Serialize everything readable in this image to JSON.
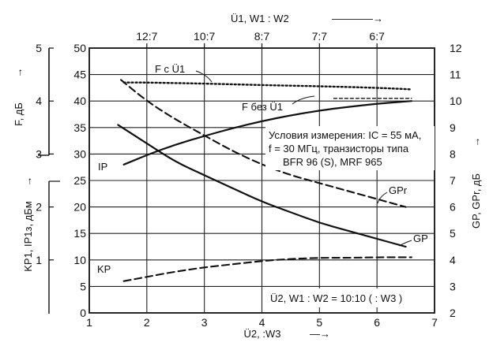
{
  "chart_data": {
    "type": "line",
    "x": {
      "label": "Ü2, :W3",
      "range": [
        1,
        7
      ],
      "ticks": [
        1,
        2,
        3,
        4,
        5,
        6,
        7
      ]
    },
    "top_axis": {
      "label": "Ü1,   W1 : W2",
      "ticks": [
        {
          "label": "12:7",
          "at": 2
        },
        {
          "label": "10:7",
          "at": 3
        },
        {
          "label": "8:7",
          "at": 4
        },
        {
          "label": "7:7",
          "at": 5
        },
        {
          "label": "6:7",
          "at": 6
        }
      ]
    },
    "y_inner": {
      "label": "",
      "range": [
        0,
        50
      ],
      "ticks": [
        0,
        5,
        10,
        15,
        20,
        25,
        30,
        35,
        40,
        45,
        50
      ]
    },
    "y_f": {
      "label": "F, дБ",
      "range": [
        0,
        5
      ],
      "ticks": [
        1,
        2,
        3,
        4,
        5
      ]
    },
    "y_kp": {
      "label": "KP1, IP1з, дБм"
    },
    "y_right": {
      "label": "GP, GPr, дБ",
      "range": [
        2,
        12
      ],
      "ticks": [
        2,
        3,
        4,
        5,
        6,
        7,
        8,
        9,
        10,
        11,
        12
      ]
    },
    "grid": true,
    "series": [
      {
        "name": "F c Ü1",
        "axis": "F",
        "style": "dotted",
        "points": [
          [
            1.6,
            4.35
          ],
          [
            2.0,
            4.35
          ],
          [
            3.0,
            4.33
          ],
          [
            4.0,
            4.3
          ],
          [
            5.0,
            4.28
          ],
          [
            6.0,
            4.25
          ],
          [
            6.6,
            4.22
          ]
        ]
      },
      {
        "name": "F без Ü1",
        "axis": "F",
        "style": "dash-fine",
        "points": [
          [
            5.25,
            4.05
          ],
          [
            6.6,
            4.05
          ]
        ]
      },
      {
        "name": "IP",
        "axis": "inner",
        "style": "solid",
        "points": [
          [
            1.6,
            28
          ],
          [
            2.0,
            29.8
          ],
          [
            2.5,
            31.8
          ],
          [
            3.0,
            33.4
          ],
          [
            3.5,
            34.9
          ],
          [
            4.0,
            36.2
          ],
          [
            4.5,
            37.3
          ],
          [
            5.0,
            38.2
          ],
          [
            5.5,
            38.9
          ],
          [
            6.0,
            39.5
          ],
          [
            6.6,
            40.0
          ]
        ]
      },
      {
        "name": "GPr",
        "axis": "G",
        "style": "dashed",
        "points": [
          [
            1.55,
            10.8
          ],
          [
            2.0,
            10.0
          ],
          [
            2.5,
            9.3
          ],
          [
            3.0,
            8.7
          ],
          [
            3.5,
            8.1
          ],
          [
            4.0,
            7.6
          ],
          [
            4.5,
            7.2
          ],
          [
            5.0,
            6.9
          ],
          [
            5.5,
            6.6
          ],
          [
            6.0,
            6.3
          ],
          [
            6.5,
            6.0
          ]
        ]
      },
      {
        "name": "GP",
        "axis": "G",
        "style": "solid",
        "points": [
          [
            1.5,
            9.1
          ],
          [
            2.0,
            8.4
          ],
          [
            2.5,
            7.7
          ],
          [
            3.0,
            7.2
          ],
          [
            3.5,
            6.7
          ],
          [
            4.0,
            6.2
          ],
          [
            4.5,
            5.8
          ],
          [
            5.0,
            5.4
          ],
          [
            5.5,
            5.1
          ],
          [
            6.0,
            4.8
          ],
          [
            6.5,
            4.5
          ]
        ]
      },
      {
        "name": "KP",
        "axis": "inner",
        "style": "dashed",
        "points": [
          [
            1.6,
            6.0
          ],
          [
            2.0,
            6.8
          ],
          [
            2.5,
            7.8
          ],
          [
            3.0,
            8.6
          ],
          [
            3.5,
            9.2
          ],
          [
            4.0,
            9.8
          ],
          [
            4.5,
            10.2
          ],
          [
            5.0,
            10.4
          ],
          [
            5.5,
            10.4
          ],
          [
            6.0,
            10.5
          ],
          [
            6.6,
            10.5
          ]
        ]
      }
    ],
    "curve_labels": [
      {
        "text": "F c Ü1",
        "series": 0
      },
      {
        "text": "F без Ü1",
        "series": 1
      },
      {
        "text": "IP",
        "series": 2
      },
      {
        "text": "GPr",
        "series": 3
      },
      {
        "text": "GP",
        "series": 4
      },
      {
        "text": "KP",
        "series": 5
      }
    ],
    "annotations": {
      "conditions_lines": [
        "Условия измерения: IC = 55 мА,",
        "f = 30 МГц, транзисторы типа",
        "BFR 96 (S), MRF 965"
      ],
      "bottom_note": "Ü2,  W1 : W2 = 10:10 ( : W3 )"
    }
  }
}
